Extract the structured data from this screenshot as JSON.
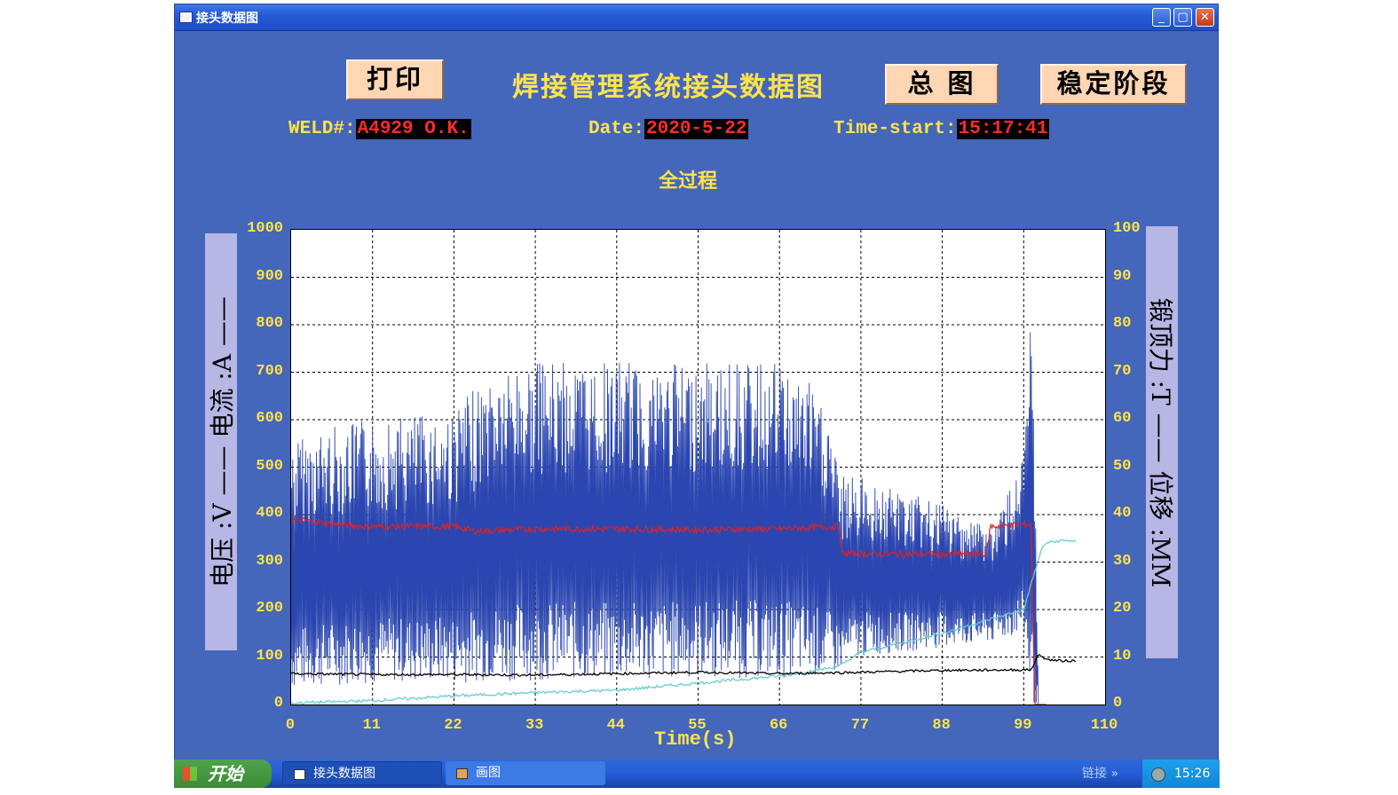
{
  "window": {
    "title": "接头数据图",
    "min": "_",
    "max": "▢",
    "close": "✕"
  },
  "buttons": {
    "print": "打印",
    "overview": "总 图",
    "stable": "稳定阶段"
  },
  "header": {
    "main_title": "焊接管理系统接头数据图",
    "weld_label": "WELD#:",
    "weld_value": "A4929  O.K.",
    "date_label": "Date:",
    "date_value": "2020-5-22",
    "time_label": "Time-start:",
    "time_value": "15:17:41"
  },
  "chart_data": {
    "type": "line",
    "title": "全过程",
    "xlabel": "Time(s)",
    "ylabel_left": "电压 :V —— 电流 :A ——",
    "ylabel_right": "锻顶力 :T —— 位移 :MM",
    "xlim": [
      0,
      110
    ],
    "ylim_left": [
      0,
      1000
    ],
    "ylim_right": [
      0,
      100
    ],
    "x_ticks": [
      "0",
      "11",
      "22",
      "33",
      "44",
      "55",
      "66",
      "77",
      "88",
      "99",
      "110"
    ],
    "y_ticks_left": [
      "1000",
      "900",
      "800",
      "700",
      "600",
      "500",
      "400",
      "300",
      "200",
      "100",
      "0"
    ],
    "y_ticks_right": [
      "100",
      "90",
      "80",
      "70",
      "60",
      "50",
      "40",
      "30",
      "20",
      "10",
      "0"
    ],
    "grid": true,
    "colors": {
      "current": "#2b46b0",
      "voltage": "#d8232a",
      "displacement": "#66cccc",
      "force": "#000000"
    },
    "series": [
      {
        "axis": "left",
        "color": "#2b46b0",
        "envelope": {
          "x": [
            0,
            6,
            11,
            22,
            27,
            33,
            44,
            55,
            66,
            70,
            73,
            74,
            77,
            88,
            95,
            99,
            100,
            100.5,
            101,
            101.5,
            102
          ],
          "top": [
            560,
            590,
            600,
            620,
            700,
            720,
            720,
            720,
            720,
            680,
            600,
            480,
            480,
            420,
            380,
            520,
            820,
            500,
            0,
            0,
            0
          ],
          "bottom": [
            30,
            40,
            45,
            45,
            50,
            50,
            50,
            55,
            55,
            60,
            60,
            70,
            100,
            120,
            130,
            150,
            0,
            0,
            0,
            0,
            0
          ]
        }
      },
      {
        "axis": "left",
        "color": "#d8232a",
        "x": [
          0,
          6,
          10,
          22,
          25,
          33,
          44,
          55,
          66,
          74,
          74.5,
          88,
          94,
          94.5,
          100,
          100.5,
          101,
          102
        ],
        "y": [
          390,
          380,
          375,
          375,
          365,
          370,
          370,
          368,
          370,
          375,
          318,
          316,
          318,
          375,
          380,
          0,
          0,
          0
        ]
      },
      {
        "axis": "right",
        "color": "#66cccc",
        "x": [
          0,
          11,
          22,
          33,
          44,
          55,
          66,
          74,
          77,
          88,
          99,
          100.5,
          101.5,
          102,
          104,
          106
        ],
        "y": [
          0.3,
          0.8,
          1.8,
          2.5,
          3,
          4.5,
          6,
          8,
          11,
          15,
          20,
          28,
          33,
          34,
          34.5,
          34.5
        ]
      },
      {
        "axis": "right",
        "color": "#000000",
        "x": [
          0,
          11,
          22,
          33,
          44,
          55,
          66,
          77,
          88,
          99,
          100,
          101,
          101.5,
          102,
          104,
          106
        ],
        "y": [
          6.5,
          6.3,
          6.3,
          6.2,
          6.5,
          6.8,
          6.5,
          6.8,
          7.2,
          7.3,
          7.3,
          10.5,
          10.2,
          9.5,
          9.2,
          9.2
        ]
      }
    ]
  },
  "taskbar": {
    "start": "开始",
    "task1": "接头数据图",
    "task2": "画图",
    "links": "链接 »",
    "time": "15:26"
  }
}
